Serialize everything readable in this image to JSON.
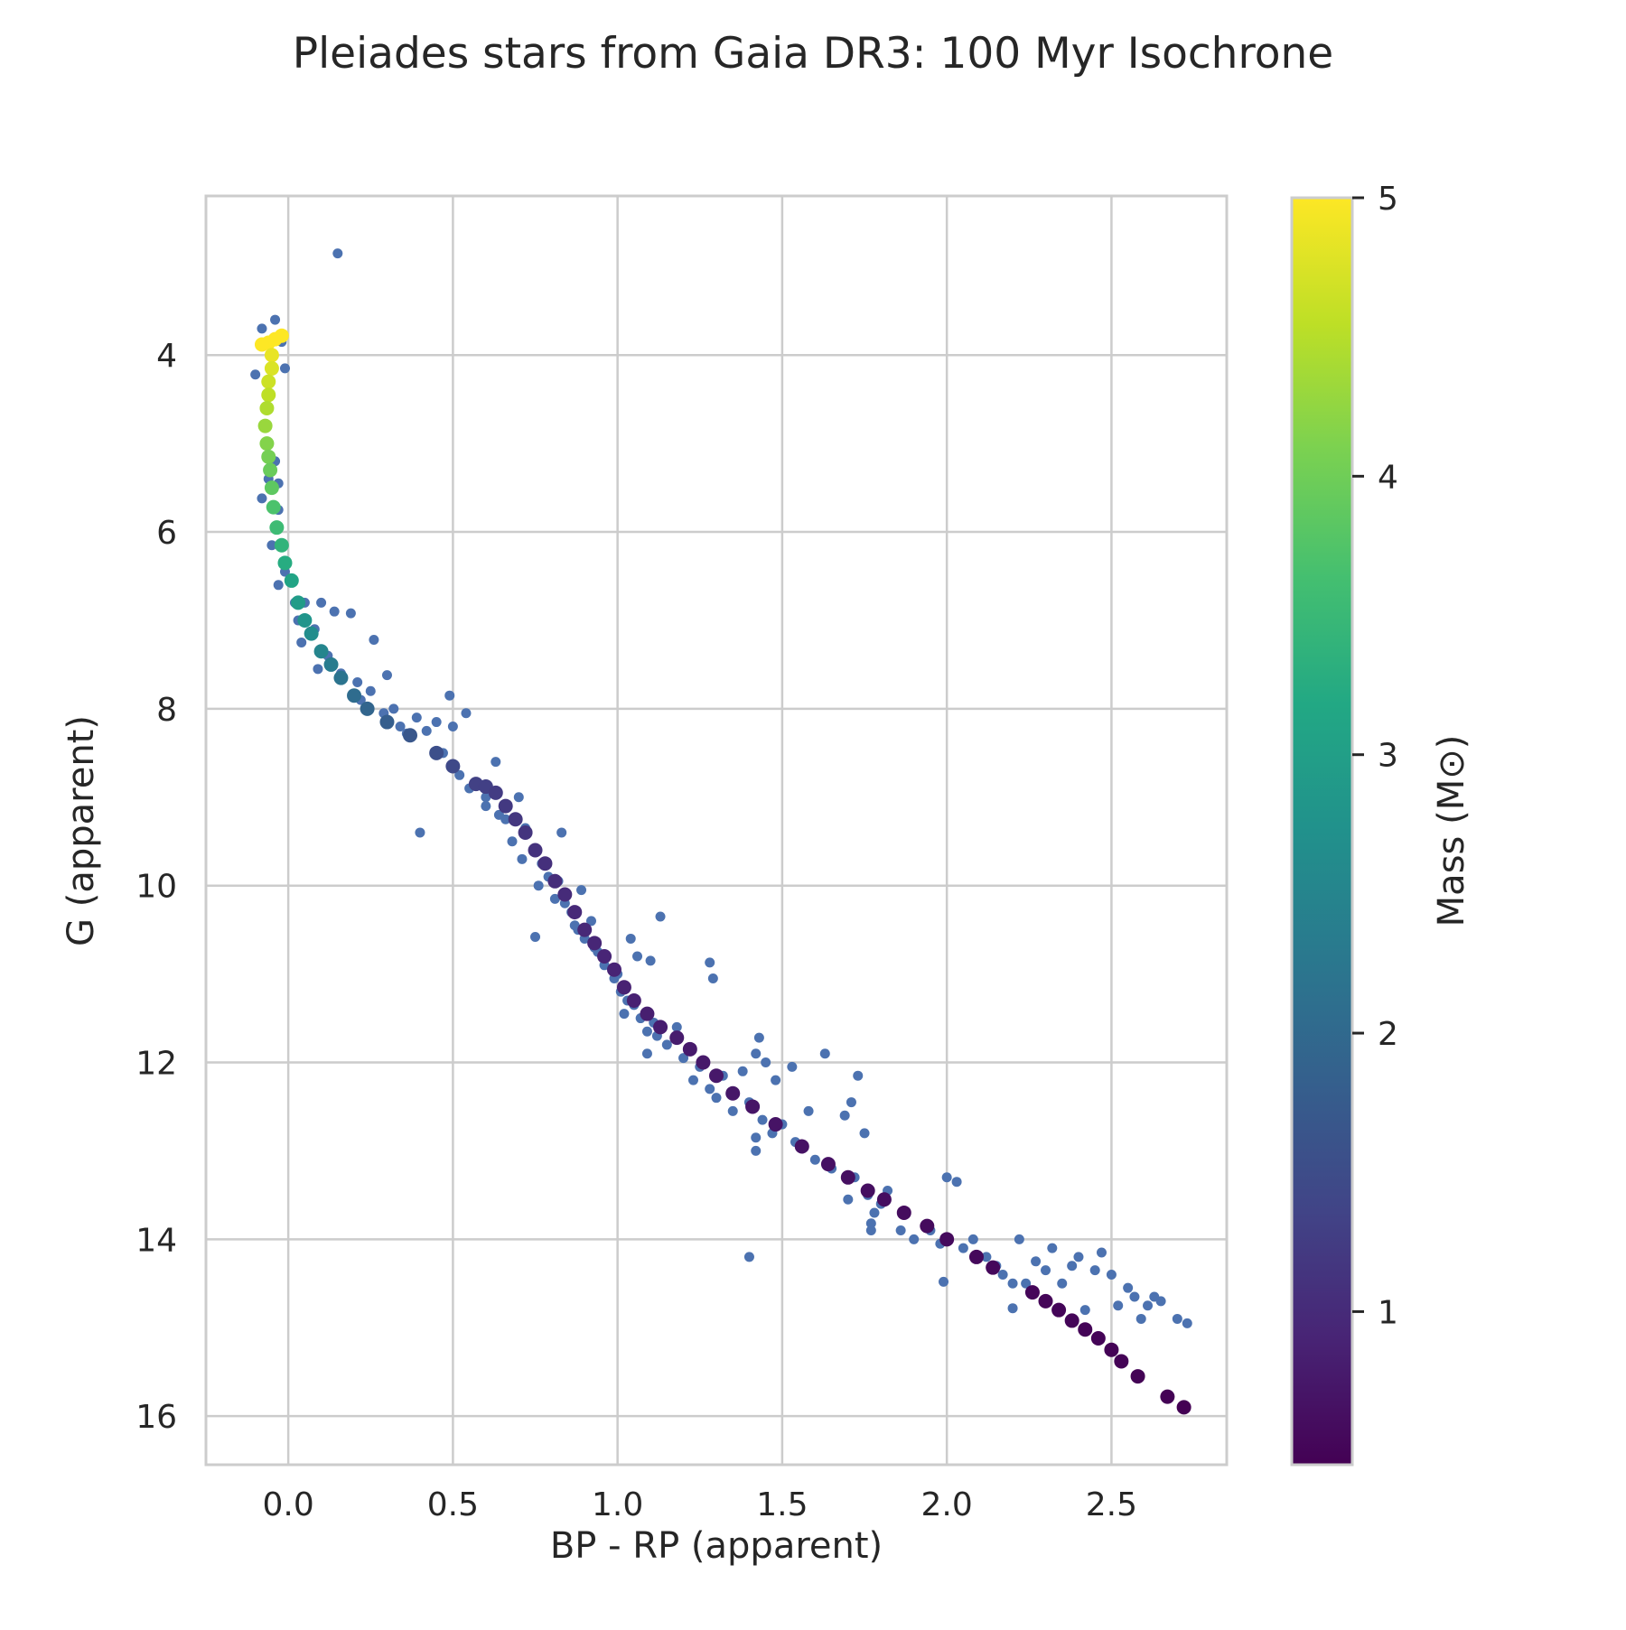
{
  "chart_data": {
    "type": "scatter",
    "title": "Pleiades stars from Gaia DR3: 100 Myr Isochrone",
    "xlabel": "BP - RP (apparent)",
    "ylabel": "G (apparent)",
    "xlim": [
      -0.25,
      2.85
    ],
    "ylim": [
      16.55,
      2.2
    ],
    "y_inverted": true,
    "grid": true,
    "x_ticks": [
      {
        "value": 0.0,
        "label": "0.0"
      },
      {
        "value": 0.5,
        "label": "0.5"
      },
      {
        "value": 1.0,
        "label": "1.0"
      },
      {
        "value": 1.5,
        "label": "1.5"
      },
      {
        "value": 2.0,
        "label": "2.0"
      },
      {
        "value": 2.5,
        "label": "2.5"
      }
    ],
    "y_ticks": [
      {
        "value": 4,
        "label": "4"
      },
      {
        "value": 6,
        "label": "6"
      },
      {
        "value": 8,
        "label": "8"
      },
      {
        "value": 10,
        "label": "10"
      },
      {
        "value": 12,
        "label": "12"
      },
      {
        "value": 14,
        "label": "14"
      },
      {
        "value": 16,
        "label": "16"
      }
    ],
    "colorbar": {
      "label": "Mass (M⊙)",
      "colormap": "viridis",
      "range": [
        0.45,
        5.0
      ],
      "ticks": [
        {
          "value": 1,
          "label": "1"
        },
        {
          "value": 2,
          "label": "2"
        },
        {
          "value": 3,
          "label": "3"
        },
        {
          "value": 4,
          "label": "4"
        },
        {
          "value": 5,
          "label": "5"
        }
      ]
    },
    "observed_star_color": "#4c72b0",
    "series": [
      {
        "kind": "observed",
        "color": "#4c72b0",
        "points": [
          [
            0.15,
            2.85
          ],
          [
            -0.04,
            3.6
          ],
          [
            -0.08,
            3.7
          ],
          [
            -0.02,
            3.85
          ],
          [
            -0.1,
            4.22
          ],
          [
            -0.01,
            4.15
          ],
          [
            -0.04,
            5.2
          ],
          [
            -0.06,
            5.4
          ],
          [
            -0.03,
            5.45
          ],
          [
            -0.08,
            5.62
          ],
          [
            -0.03,
            5.75
          ],
          [
            -0.05,
            6.15
          ],
          [
            -0.03,
            6.6
          ],
          [
            -0.01,
            6.45
          ],
          [
            0.02,
            6.8
          ],
          [
            0.05,
            6.8
          ],
          [
            0.03,
            7.0
          ],
          [
            0.1,
            6.8
          ],
          [
            0.14,
            6.9
          ],
          [
            0.19,
            6.92
          ],
          [
            0.04,
            7.25
          ],
          [
            0.08,
            7.1
          ],
          [
            0.12,
            7.4
          ],
          [
            0.09,
            7.55
          ],
          [
            0.16,
            7.6
          ],
          [
            0.21,
            7.7
          ],
          [
            0.25,
            7.8
          ],
          [
            0.22,
            7.9
          ],
          [
            0.26,
            7.22
          ],
          [
            0.3,
            7.62
          ],
          [
            0.29,
            8.05
          ],
          [
            0.32,
            8.0
          ],
          [
            0.34,
            8.2
          ],
          [
            0.36,
            8.28
          ],
          [
            0.39,
            8.1
          ],
          [
            0.42,
            8.25
          ],
          [
            0.45,
            8.15
          ],
          [
            0.47,
            8.5
          ],
          [
            0.5,
            8.2
          ],
          [
            0.49,
            7.85
          ],
          [
            0.54,
            8.05
          ],
          [
            0.52,
            8.75
          ],
          [
            0.55,
            8.9
          ],
          [
            0.6,
            9.0
          ],
          [
            0.63,
            8.6
          ],
          [
            0.66,
            9.25
          ],
          [
            0.7,
            9.0
          ],
          [
            0.68,
            9.5
          ],
          [
            0.72,
            9.35
          ],
          [
            0.75,
            9.6
          ],
          [
            0.77,
            9.75
          ],
          [
            0.79,
            9.9
          ],
          [
            0.82,
            9.95
          ],
          [
            0.84,
            10.2
          ],
          [
            0.86,
            10.3
          ],
          [
            0.88,
            10.5
          ],
          [
            0.9,
            10.6
          ],
          [
            0.83,
            9.4
          ],
          [
            0.89,
            10.05
          ],
          [
            0.92,
            10.4
          ],
          [
            0.94,
            10.75
          ],
          [
            0.96,
            10.9
          ],
          [
            0.99,
            11.05
          ],
          [
            1.01,
            11.2
          ],
          [
            1.03,
            11.3
          ],
          [
            1.05,
            11.35
          ],
          [
            1.07,
            11.5
          ],
          [
            1.09,
            11.65
          ],
          [
            1.12,
            11.7
          ],
          [
            1.15,
            11.8
          ],
          [
            1.04,
            10.6
          ],
          [
            1.06,
            10.8
          ],
          [
            1.1,
            10.85
          ],
          [
            1.13,
            10.35
          ],
          [
            1.28,
            10.87
          ],
          [
            1.29,
            11.05
          ],
          [
            0.75,
            10.58
          ],
          [
            0.4,
            9.4
          ],
          [
            1.23,
            12.2
          ],
          [
            1.28,
            12.3
          ],
          [
            1.32,
            12.15
          ],
          [
            1.38,
            12.1
          ],
          [
            1.42,
            11.9
          ],
          [
            1.43,
            11.72
          ],
          [
            1.45,
            12.0
          ],
          [
            1.48,
            12.2
          ],
          [
            1.53,
            12.05
          ],
          [
            1.4,
            12.45
          ],
          [
            1.44,
            12.65
          ],
          [
            1.47,
            12.8
          ],
          [
            1.5,
            12.7
          ],
          [
            1.54,
            12.9
          ],
          [
            1.58,
            12.55
          ],
          [
            1.6,
            13.1
          ],
          [
            1.42,
            12.85
          ],
          [
            1.42,
            13.0
          ],
          [
            1.63,
            11.9
          ],
          [
            1.65,
            13.2
          ],
          [
            1.69,
            12.6
          ],
          [
            1.71,
            12.45
          ],
          [
            1.73,
            12.15
          ],
          [
            1.75,
            12.8
          ],
          [
            1.72,
            13.3
          ],
          [
            1.7,
            13.55
          ],
          [
            1.76,
            13.5
          ],
          [
            1.78,
            13.7
          ],
          [
            1.8,
            13.6
          ],
          [
            1.82,
            13.45
          ],
          [
            1.77,
            13.82
          ],
          [
            1.77,
            13.9
          ],
          [
            1.86,
            13.9
          ],
          [
            1.9,
            14.0
          ],
          [
            1.95,
            13.9
          ],
          [
            1.98,
            14.05
          ],
          [
            2.0,
            13.3
          ],
          [
            2.03,
            13.35
          ],
          [
            2.05,
            14.1
          ],
          [
            2.08,
            14.0
          ],
          [
            2.12,
            14.2
          ],
          [
            2.15,
            14.3
          ],
          [
            2.17,
            14.4
          ],
          [
            2.2,
            14.5
          ],
          [
            2.22,
            14.0
          ],
          [
            2.24,
            14.5
          ],
          [
            2.27,
            14.25
          ],
          [
            2.3,
            14.35
          ],
          [
            2.32,
            14.1
          ],
          [
            2.35,
            14.5
          ],
          [
            2.38,
            14.3
          ],
          [
            2.4,
            14.2
          ],
          [
            2.42,
            14.8
          ],
          [
            2.45,
            14.35
          ],
          [
            2.47,
            14.15
          ],
          [
            2.5,
            14.4
          ],
          [
            2.52,
            14.75
          ],
          [
            2.55,
            14.55
          ],
          [
            2.57,
            14.65
          ],
          [
            2.59,
            14.9
          ],
          [
            2.61,
            14.75
          ],
          [
            2.63,
            14.65
          ],
          [
            2.65,
            14.7
          ],
          [
            2.7,
            14.9
          ],
          [
            2.73,
            14.95
          ],
          [
            2.2,
            14.78
          ],
          [
            1.99,
            14.48
          ],
          [
            1.4,
            14.2
          ],
          [
            0.6,
            9.1
          ],
          [
            0.64,
            9.2
          ],
          [
            0.71,
            9.7
          ],
          [
            0.76,
            10.0
          ],
          [
            0.81,
            10.15
          ],
          [
            0.87,
            10.45
          ],
          [
            0.93,
            10.7
          ],
          [
            1.0,
            11.0
          ],
          [
            1.02,
            11.45
          ],
          [
            1.11,
            11.55
          ],
          [
            1.18,
            11.6
          ],
          [
            1.2,
            11.95
          ],
          [
            1.25,
            12.05
          ],
          [
            1.3,
            12.4
          ],
          [
            1.35,
            12.55
          ],
          [
            1.09,
            11.9
          ]
        ]
      },
      {
        "kind": "isochrone",
        "mass_min": 0.45,
        "mass_max": 5.0,
        "points": [
          [
            -0.02,
            3.78,
            5.0
          ],
          [
            -0.04,
            3.82,
            5.0
          ],
          [
            -0.06,
            3.86,
            5.0
          ],
          [
            -0.08,
            3.88,
            5.0
          ],
          [
            -0.05,
            4.0,
            4.85
          ],
          [
            -0.05,
            4.15,
            4.75
          ],
          [
            -0.06,
            4.3,
            4.65
          ],
          [
            -0.06,
            4.45,
            4.55
          ],
          [
            -0.065,
            4.6,
            4.45
          ],
          [
            -0.07,
            4.8,
            4.3
          ],
          [
            -0.065,
            5.0,
            4.15
          ],
          [
            -0.06,
            5.15,
            4.05
          ],
          [
            -0.055,
            5.3,
            3.95
          ],
          [
            -0.05,
            5.5,
            3.85
          ],
          [
            -0.045,
            5.72,
            3.7
          ],
          [
            -0.035,
            5.95,
            3.55
          ],
          [
            -0.02,
            6.15,
            3.4
          ],
          [
            -0.01,
            6.35,
            3.25
          ],
          [
            0.01,
            6.55,
            3.1
          ],
          [
            0.03,
            6.8,
            2.95
          ],
          [
            0.05,
            7.0,
            2.8
          ],
          [
            0.07,
            7.15,
            2.65
          ],
          [
            0.1,
            7.35,
            2.5
          ],
          [
            0.13,
            7.5,
            2.35
          ],
          [
            0.16,
            7.65,
            2.2
          ],
          [
            0.2,
            7.85,
            2.05
          ],
          [
            0.24,
            8.0,
            1.92
          ],
          [
            0.3,
            8.15,
            1.8
          ],
          [
            0.37,
            8.3,
            1.68
          ],
          [
            0.45,
            8.5,
            1.55
          ],
          [
            0.5,
            8.65,
            1.45
          ],
          [
            0.57,
            8.85,
            1.32
          ],
          [
            0.6,
            8.88,
            1.3
          ],
          [
            0.63,
            8.95,
            1.25
          ],
          [
            0.66,
            9.1,
            1.2
          ],
          [
            0.69,
            9.25,
            1.17
          ],
          [
            0.72,
            9.4,
            1.14
          ],
          [
            0.75,
            9.6,
            1.1
          ],
          [
            0.78,
            9.75,
            1.07
          ],
          [
            0.81,
            9.95,
            1.04
          ],
          [
            0.84,
            10.1,
            1.01
          ],
          [
            0.87,
            10.3,
            0.98
          ],
          [
            0.9,
            10.5,
            0.96
          ],
          [
            0.93,
            10.65,
            0.94
          ],
          [
            0.96,
            10.8,
            0.92
          ],
          [
            0.99,
            10.95,
            0.9
          ],
          [
            1.02,
            11.15,
            0.88
          ],
          [
            1.05,
            11.3,
            0.86
          ],
          [
            1.09,
            11.45,
            0.84
          ],
          [
            1.13,
            11.6,
            0.82
          ],
          [
            1.18,
            11.72,
            0.8
          ],
          [
            1.22,
            11.85,
            0.78
          ],
          [
            1.26,
            12.0,
            0.76
          ],
          [
            1.3,
            12.15,
            0.75
          ],
          [
            1.35,
            12.35,
            0.73
          ],
          [
            1.41,
            12.5,
            0.71
          ],
          [
            1.48,
            12.7,
            0.69
          ],
          [
            1.56,
            12.95,
            0.67
          ],
          [
            1.64,
            13.15,
            0.65
          ],
          [
            1.7,
            13.3,
            0.63
          ],
          [
            1.76,
            13.45,
            0.62
          ],
          [
            1.81,
            13.55,
            0.61
          ],
          [
            1.87,
            13.7,
            0.59
          ],
          [
            1.94,
            13.85,
            0.58
          ],
          [
            2.0,
            14.0,
            0.57
          ],
          [
            2.09,
            14.2,
            0.55
          ],
          [
            2.14,
            14.32,
            0.54
          ],
          [
            2.26,
            14.6,
            0.52
          ],
          [
            2.3,
            14.7,
            0.51
          ],
          [
            2.34,
            14.8,
            0.5
          ],
          [
            2.38,
            14.92,
            0.5
          ],
          [
            2.42,
            15.02,
            0.49
          ],
          [
            2.46,
            15.12,
            0.49
          ],
          [
            2.5,
            15.25,
            0.48
          ],
          [
            2.53,
            15.38,
            0.48
          ],
          [
            2.58,
            15.55,
            0.47
          ],
          [
            2.67,
            15.78,
            0.46
          ],
          [
            2.72,
            15.9,
            0.45
          ]
        ]
      }
    ]
  }
}
